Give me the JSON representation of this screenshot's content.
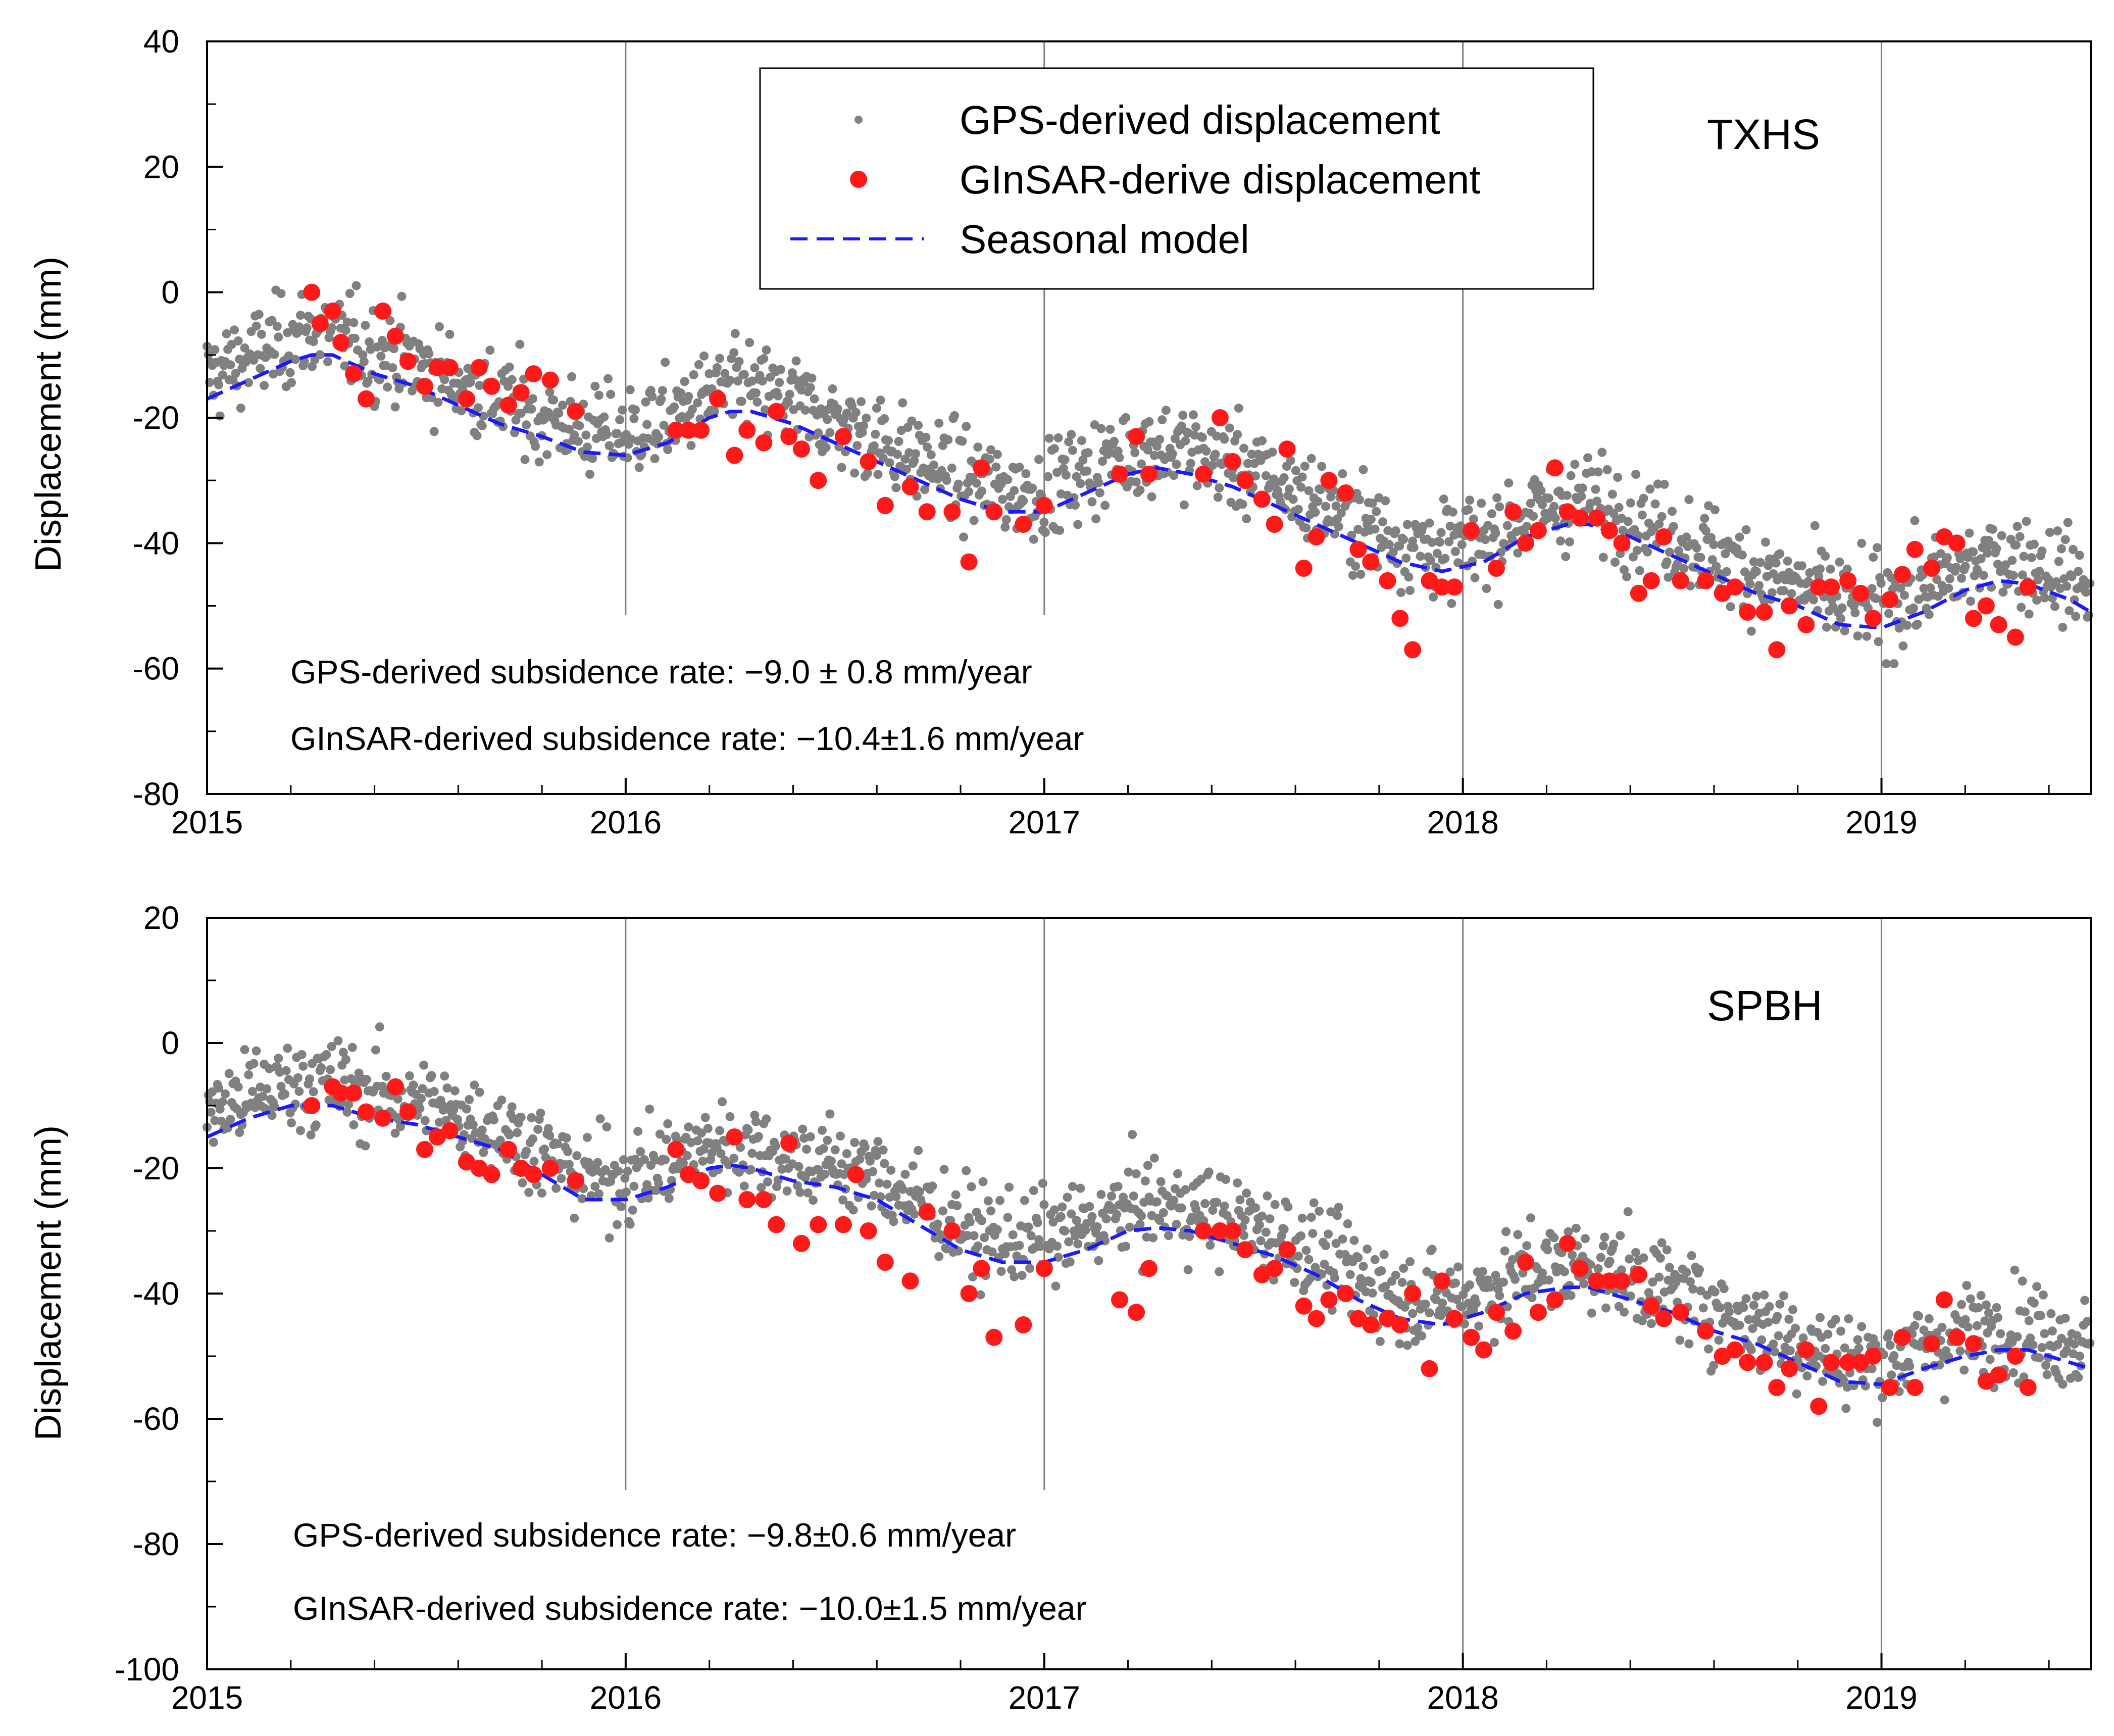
{
  "colors": {
    "gps": "#808080",
    "ginsar": "#ff1a1a",
    "model": "#1a1aff",
    "grid": "#808080",
    "axis": "#000000"
  },
  "legend": {
    "gps_label": "GPS-derived displacement",
    "ginsar_label": "GInSAR-derive displacement",
    "model_label": "Seasonal model"
  },
  "chart_data": [
    {
      "type": "scatter",
      "station": "TXHS",
      "xlabel": "",
      "ylabel": "Displacement (mm)",
      "xlim": [
        2015,
        2019.5
      ],
      "ylim": [
        -80,
        40
      ],
      "xticks": [
        "2015",
        "2016",
        "2017",
        "2018",
        "2019"
      ],
      "yticks": [
        "40",
        "20",
        "0",
        "-20",
        "-40",
        "-60",
        "-80"
      ],
      "gridlines_x": [
        2016,
        2017,
        2018,
        2019
      ],
      "rate_text": {
        "gps": "GPS-derived subsidence rate: −9.0 ± 0.8 mm/year",
        "ginsar": "GInSAR-derived subsidence rate: −10.4±1.6 mm/year"
      },
      "seasonal_model": {
        "x": [
          2015.0,
          2015.1,
          2015.2,
          2015.25,
          2015.3,
          2015.4,
          2015.5,
          2015.6,
          2015.7,
          2015.8,
          2015.9,
          2016.0,
          2016.1,
          2016.2,
          2016.25,
          2016.3,
          2016.4,
          2016.5,
          2016.6,
          2016.7,
          2016.8,
          2016.9,
          2017.0,
          2017.1,
          2017.2,
          2017.27,
          2017.35,
          2017.45,
          2017.55,
          2017.65,
          2017.75,
          2017.85,
          2017.95,
          2018.05,
          2018.15,
          2018.25,
          2018.3,
          2018.4,
          2018.5,
          2018.6,
          2018.7,
          2018.8,
          2018.9,
          2019.0,
          2019.1,
          2019.2,
          2019.28,
          2019.35,
          2019.45,
          2019.5
        ],
        "y": [
          -17,
          -14,
          -11,
          -10,
          -10,
          -13,
          -15,
          -18,
          -21,
          -23,
          -25.5,
          -26,
          -24,
          -20,
          -19,
          -19,
          -21,
          -24,
          -27,
          -30,
          -33,
          -35,
          -35,
          -32,
          -29,
          -28,
          -29,
          -31,
          -34,
          -37,
          -40,
          -43,
          -44.5,
          -43,
          -39,
          -37,
          -37,
          -39,
          -42,
          -45,
          -48,
          -50,
          -53,
          -53.5,
          -51,
          -47.5,
          -46,
          -46.5,
          -49,
          -51
        ]
      },
      "ginsar": {
        "x": [
          2015.25,
          2015.27,
          2015.3,
          2015.32,
          2015.35,
          2015.38,
          2015.42,
          2015.45,
          2015.48,
          2015.52,
          2015.55,
          2015.58,
          2015.62,
          2015.65,
          2015.68,
          2015.72,
          2015.75,
          2015.78,
          2015.82,
          2015.88,
          2016.12,
          2016.15,
          2016.18,
          2016.22,
          2016.26,
          2016.29,
          2016.33,
          2016.36,
          2016.39,
          2016.42,
          2016.46,
          2016.52,
          2016.58,
          2016.62,
          2016.68,
          2016.72,
          2016.78,
          2016.82,
          2016.85,
          2016.88,
          2016.95,
          2017.0,
          2017.18,
          2017.22,
          2017.25,
          2017.38,
          2017.42,
          2017.45,
          2017.48,
          2017.52,
          2017.55,
          2017.58,
          2017.62,
          2017.65,
          2017.68,
          2017.72,
          2017.75,
          2017.78,
          2017.82,
          2017.85,
          2017.88,
          2017.92,
          2017.95,
          2017.98,
          2018.02,
          2018.08,
          2018.12,
          2018.15,
          2018.18,
          2018.22,
          2018.25,
          2018.28,
          2018.32,
          2018.35,
          2018.38,
          2018.42,
          2018.45,
          2018.48,
          2018.52,
          2018.58,
          2018.62,
          2018.65,
          2018.68,
          2018.72,
          2018.75,
          2018.78,
          2018.82,
          2018.85,
          2018.88,
          2018.92,
          2018.95,
          2018.98,
          2019.02,
          2019.05,
          2019.08,
          2019.12,
          2019.15,
          2019.18,
          2019.22,
          2019.25,
          2019.28,
          2019.32,
          2019.35
        ],
        "y": [
          0,
          -5,
          -3,
          -8,
          -13,
          -17,
          -3,
          -7,
          -11,
          -15,
          -12,
          -12,
          -17,
          -12,
          -15,
          -18,
          -16,
          -13,
          -14,
          -19,
          -22,
          -22,
          -22,
          -17,
          -26,
          -22,
          -24,
          -19,
          -23,
          -25,
          -30,
          -23,
          -27,
          -34,
          -31,
          -35,
          -35,
          -43,
          -28,
          -35,
          -37,
          -34,
          -29,
          -23,
          -29,
          -29,
          -20,
          -27,
          -30,
          -33,
          -37,
          -25,
          -44,
          -39,
          -30,
          -32,
          -41,
          -43,
          -46,
          -52,
          -57,
          -46,
          -47,
          -47,
          -38,
          -44,
          -35,
          -40,
          -38,
          -28,
          -35,
          -36,
          -36,
          -38,
          -40,
          -48,
          -46,
          -39,
          -46,
          -46,
          -48,
          -47,
          -51,
          -51,
          -57,
          -50,
          -53,
          -47,
          -47,
          -46,
          -48,
          -52,
          -49,
          -45,
          -41,
          -44,
          -39,
          -40,
          -52,
          -50,
          -53,
          -55,
          -47
        ]
      }
    },
    {
      "type": "scatter",
      "station": "SPBH",
      "xlabel": "",
      "ylabel": "Displacement (mm)",
      "xlim": [
        2015,
        2019.5
      ],
      "ylim": [
        -100,
        20
      ],
      "xticks": [
        "2015",
        "2016",
        "2017",
        "2018",
        "2019"
      ],
      "yticks": [
        "20",
        "0",
        "-20",
        "-40",
        "-60",
        "-80",
        "-100"
      ],
      "gridlines_x": [
        2016,
        2017,
        2018,
        2019
      ],
      "rate_text": {
        "gps": "GPS-derived subsidence rate: −9.8±0.6 mm/year",
        "ginsar": "GInSAR-derived subsidence rate: −10.0±1.5 mm/year"
      },
      "seasonal_model": {
        "x": [
          2015.0,
          2015.1,
          2015.2,
          2015.25,
          2015.3,
          2015.4,
          2015.5,
          2015.6,
          2015.7,
          2015.8,
          2015.9,
          2016.0,
          2016.1,
          2016.2,
          2016.25,
          2016.3,
          2016.4,
          2016.5,
          2016.6,
          2016.7,
          2016.8,
          2016.9,
          2017.0,
          2017.1,
          2017.2,
          2017.27,
          2017.35,
          2017.45,
          2017.55,
          2017.65,
          2017.75,
          2017.85,
          2017.95,
          2018.05,
          2018.15,
          2018.25,
          2018.3,
          2018.4,
          2018.5,
          2018.6,
          2018.7,
          2018.8,
          2018.9,
          2019.0,
          2019.1,
          2019.2,
          2019.28,
          2019.35,
          2019.45,
          2019.5
        ],
        "y": [
          -15,
          -12,
          -10,
          -10,
          -10,
          -12,
          -13,
          -15,
          -17,
          -21,
          -25,
          -25,
          -23,
          -20,
          -19.5,
          -20,
          -22,
          -23,
          -25,
          -29,
          -33,
          -35,
          -35,
          -33,
          -30,
          -29.5,
          -30,
          -32,
          -34,
          -37,
          -41,
          -44,
          -45,
          -43,
          -40,
          -39,
          -39,
          -41,
          -43,
          -46,
          -48,
          -51,
          -54,
          -54.5,
          -52,
          -50,
          -49,
          -49,
          -51,
          -52
        ]
      },
      "ginsar": {
        "x": [
          2015.25,
          2015.3,
          2015.32,
          2015.35,
          2015.38,
          2015.42,
          2015.45,
          2015.48,
          2015.52,
          2015.55,
          2015.58,
          2015.62,
          2015.65,
          2015.68,
          2015.72,
          2015.75,
          2015.78,
          2015.82,
          2015.88,
          2016.12,
          2016.15,
          2016.18,
          2016.22,
          2016.26,
          2016.29,
          2016.33,
          2016.36,
          2016.39,
          2016.42,
          2016.46,
          2016.52,
          2016.55,
          2016.58,
          2016.62,
          2016.68,
          2016.72,
          2016.78,
          2016.82,
          2016.85,
          2016.88,
          2016.95,
          2017.0,
          2017.18,
          2017.22,
          2017.25,
          2017.38,
          2017.42,
          2017.45,
          2017.48,
          2017.52,
          2017.55,
          2017.58,
          2017.62,
          2017.65,
          2017.68,
          2017.72,
          2017.75,
          2017.78,
          2017.82,
          2017.85,
          2017.88,
          2017.92,
          2017.95,
          2017.98,
          2018.02,
          2018.05,
          2018.08,
          2018.12,
          2018.15,
          2018.18,
          2018.22,
          2018.25,
          2018.28,
          2018.32,
          2018.35,
          2018.38,
          2018.42,
          2018.45,
          2018.48,
          2018.52,
          2018.58,
          2018.62,
          2018.65,
          2018.68,
          2018.72,
          2018.75,
          2018.78,
          2018.82,
          2018.85,
          2018.88,
          2018.92,
          2018.95,
          2018.98,
          2019.02,
          2019.05,
          2019.08,
          2019.12,
          2019.15,
          2019.18,
          2019.22,
          2019.25,
          2019.28,
          2019.32,
          2019.35
        ],
        "y": [
          -10,
          -7,
          -8,
          -8,
          -11,
          -12,
          -7,
          -11,
          -17,
          -15,
          -14,
          -19,
          -20,
          -21,
          -17,
          -20,
          -21,
          -20,
          -22,
          -17,
          -21,
          -22,
          -24,
          -15,
          -25,
          -25,
          -29,
          -16,
          -32,
          -29,
          -29,
          -21,
          -30,
          -35,
          -38,
          -27,
          -30,
          -40,
          -36,
          -47,
          -45,
          -36,
          -41,
          -43,
          -36,
          -30,
          -30,
          -30,
          -33,
          -37,
          -36,
          -33,
          -42,
          -44,
          -41,
          -40,
          -44,
          -45,
          -44,
          -45,
          -40,
          -52,
          -38,
          -44,
          -47,
          -49,
          -43,
          -46,
          -35,
          -43,
          -41,
          -32,
          -36,
          -38,
          -38,
          -38,
          -37,
          -42,
          -44,
          -43,
          -46,
          -50,
          -49,
          -51,
          -51,
          -55,
          -52,
          -49,
          -58,
          -51,
          -51,
          -51,
          -50,
          -55,
          -47,
          -55,
          -48,
          -41,
          -47,
          -48,
          -54,
          -53,
          -50,
          -55
        ]
      }
    }
  ]
}
